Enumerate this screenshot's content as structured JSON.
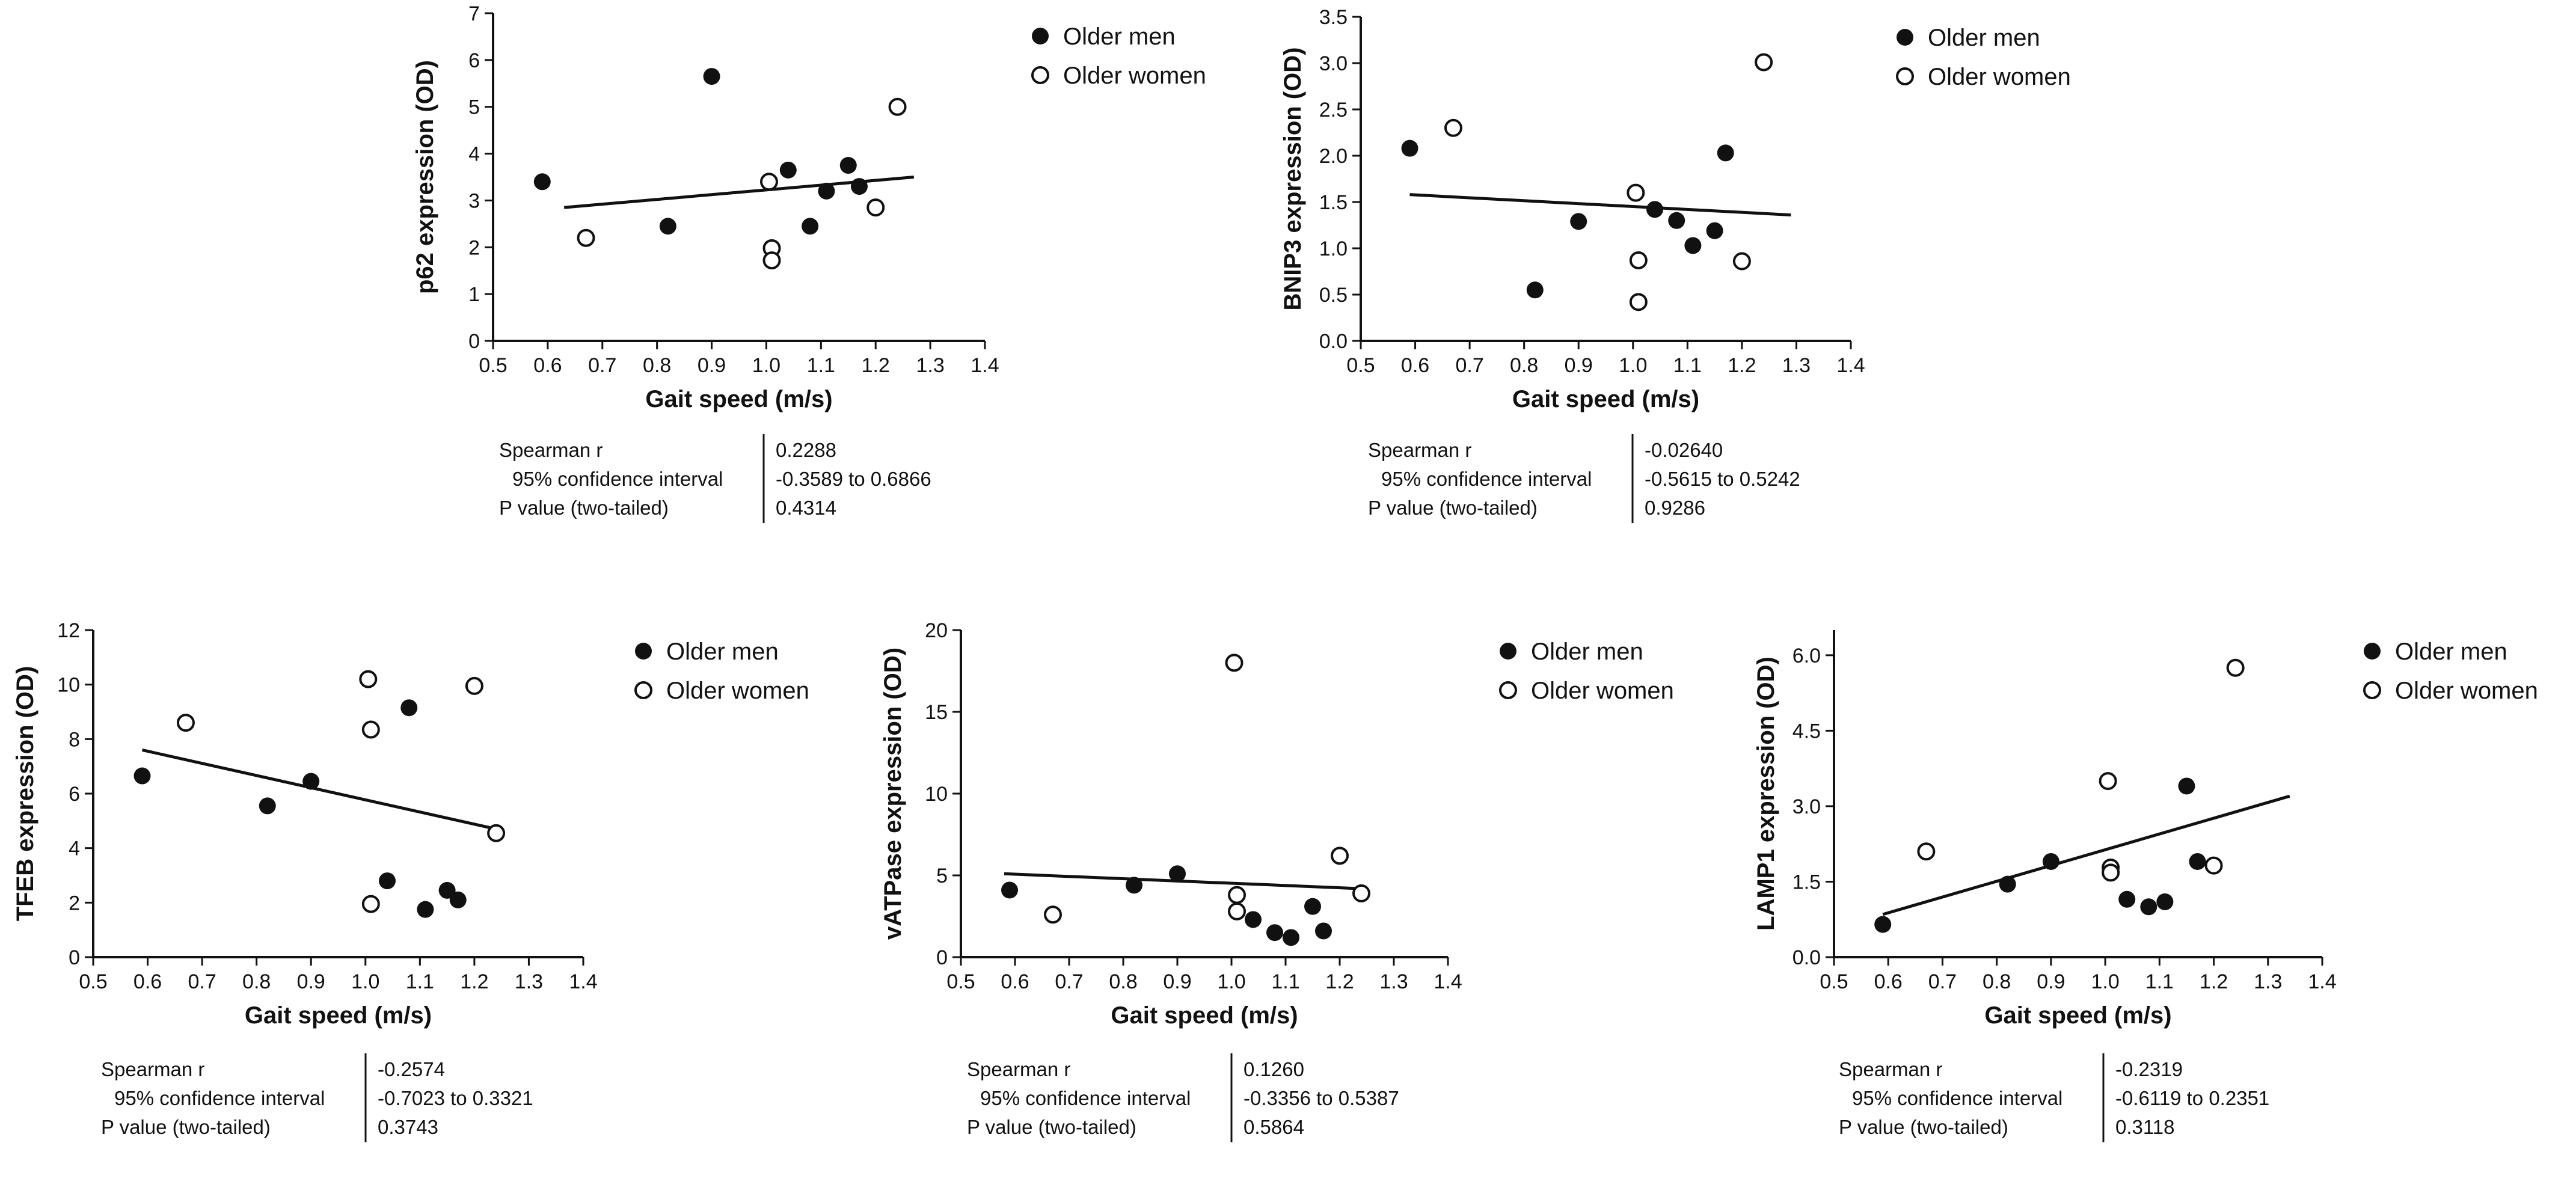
{
  "figure": {
    "legend": {
      "men_label": "Older men",
      "women_label": "Older women"
    },
    "stats_labels": [
      "Spearman r",
      "95% confidence interval",
      "P value (two-tailed)"
    ]
  },
  "chart_data": [
    {
      "type": "scatter",
      "title": "",
      "xlabel": "Gait speed (m/s)",
      "ylabel": "p62 expression (OD)",
      "xlim": [
        0.5,
        1.4
      ],
      "ylim": [
        0,
        7
      ],
      "xticks": [
        0.5,
        0.6,
        0.7,
        0.8,
        0.9,
        1.0,
        1.1,
        1.2,
        1.3,
        1.4
      ],
      "yticks": [
        0,
        1,
        2,
        3,
        4,
        5,
        6,
        7
      ],
      "grid": false,
      "legend_position": "right",
      "series": [
        {
          "name": "Older men",
          "marker": "filled-circle",
          "points": [
            [
              0.59,
              3.4
            ],
            [
              0.82,
              2.45
            ],
            [
              0.9,
              5.65
            ],
            [
              1.04,
              3.65
            ],
            [
              1.08,
              2.45
            ],
            [
              1.11,
              3.2
            ],
            [
              1.15,
              3.75
            ],
            [
              1.17,
              3.3
            ]
          ]
        },
        {
          "name": "Older women",
          "marker": "open-circle",
          "points": [
            [
              0.67,
              2.2
            ],
            [
              1.005,
              3.4
            ],
            [
              1.01,
              1.98
            ],
            [
              1.01,
              1.72
            ],
            [
              1.2,
              2.85
            ],
            [
              1.24,
              5.0
            ]
          ]
        }
      ],
      "regression_line": [
        [
          0.63,
          2.85
        ],
        [
          1.27,
          3.5
        ]
      ],
      "stats": {
        "spearman_r": "0.2288",
        "confidence_interval": "-0.3589 to 0.6866",
        "p_value": "0.4314"
      }
    },
    {
      "type": "scatter",
      "title": "",
      "xlabel": "Gait speed (m/s)",
      "ylabel": "BNIP3 expression (OD)",
      "xlim": [
        0.5,
        1.4
      ],
      "ylim": [
        0,
        3.5
      ],
      "xticks": [
        0.5,
        0.6,
        0.7,
        0.8,
        0.9,
        1.0,
        1.1,
        1.2,
        1.3,
        1.4
      ],
      "yticks": [
        0.0,
        0.5,
        1.0,
        1.5,
        2.0,
        2.5,
        3.0,
        3.5
      ],
      "grid": false,
      "legend_position": "right",
      "series": [
        {
          "name": "Older men",
          "marker": "filled-circle",
          "points": [
            [
              0.59,
              2.08
            ],
            [
              0.82,
              0.55
            ],
            [
              0.9,
              1.29
            ],
            [
              1.04,
              1.42
            ],
            [
              1.08,
              1.3
            ],
            [
              1.11,
              1.03
            ],
            [
              1.15,
              1.19
            ],
            [
              1.17,
              2.03
            ]
          ]
        },
        {
          "name": "Older women",
          "marker": "open-circle",
          "points": [
            [
              0.67,
              2.3
            ],
            [
              1.005,
              1.6
            ],
            [
              1.01,
              0.87
            ],
            [
              1.01,
              0.42
            ],
            [
              1.2,
              0.86
            ],
            [
              1.24,
              3.01
            ]
          ]
        }
      ],
      "regression_line": [
        [
          0.59,
          1.58
        ],
        [
          1.29,
          1.36
        ]
      ],
      "stats": {
        "spearman_r": "-0.02640",
        "confidence_interval": "-0.5615 to 0.5242",
        "p_value": "0.9286"
      }
    },
    {
      "type": "scatter",
      "title": "",
      "xlabel": "Gait speed (m/s)",
      "ylabel": "TFEB expression (OD)",
      "xlim": [
        0.5,
        1.4
      ],
      "ylim": [
        0,
        12
      ],
      "xticks": [
        0.5,
        0.6,
        0.7,
        0.8,
        0.9,
        1.0,
        1.1,
        1.2,
        1.3,
        1.4
      ],
      "yticks": [
        0,
        2,
        4,
        6,
        8,
        10,
        12
      ],
      "grid": false,
      "legend_position": "right",
      "series": [
        {
          "name": "Older men",
          "marker": "filled-circle",
          "points": [
            [
              0.59,
              6.65
            ],
            [
              0.82,
              5.55
            ],
            [
              0.9,
              6.45
            ],
            [
              1.04,
              2.8
            ],
            [
              1.08,
              9.15
            ],
            [
              1.11,
              1.75
            ],
            [
              1.15,
              2.45
            ],
            [
              1.17,
              2.1
            ]
          ]
        },
        {
          "name": "Older women",
          "marker": "open-circle",
          "points": [
            [
              0.67,
              8.6
            ],
            [
              1.005,
              10.2
            ],
            [
              1.01,
              8.35
            ],
            [
              1.01,
              1.95
            ],
            [
              1.2,
              9.95
            ],
            [
              1.24,
              4.55
            ]
          ]
        }
      ],
      "regression_line": [
        [
          0.59,
          7.6
        ],
        [
          1.24,
          4.7
        ]
      ],
      "stats": {
        "spearman_r": "-0.2574",
        "confidence_interval": "-0.7023 to 0.3321",
        "p_value": "0.3743"
      }
    },
    {
      "type": "scatter",
      "title": "",
      "xlabel": "Gait speed (m/s)",
      "ylabel": "vATPase expression (OD)",
      "xlim": [
        0.5,
        1.4
      ],
      "ylim": [
        0,
        20
      ],
      "xticks": [
        0.5,
        0.6,
        0.7,
        0.8,
        0.9,
        1.0,
        1.1,
        1.2,
        1.3,
        1.4
      ],
      "yticks": [
        0,
        5,
        10,
        15,
        20
      ],
      "grid": false,
      "legend_position": "right",
      "series": [
        {
          "name": "Older men",
          "marker": "filled-circle",
          "points": [
            [
              0.59,
              4.1
            ],
            [
              0.82,
              4.4
            ],
            [
              0.9,
              5.1
            ],
            [
              1.04,
              2.3
            ],
            [
              1.08,
              1.5
            ],
            [
              1.11,
              1.2
            ],
            [
              1.15,
              3.1
            ],
            [
              1.17,
              1.6
            ]
          ]
        },
        {
          "name": "Older women",
          "marker": "open-circle",
          "points": [
            [
              0.67,
              2.6
            ],
            [
              1.005,
              18.0
            ],
            [
              1.01,
              3.8
            ],
            [
              1.01,
              2.8
            ],
            [
              1.2,
              6.2
            ],
            [
              1.24,
              3.9
            ]
          ]
        }
      ],
      "regression_line": [
        [
          0.58,
          5.1
        ],
        [
          1.23,
          4.2
        ]
      ],
      "stats": {
        "spearman_r": "0.1260",
        "confidence_interval": "-0.3356 to 0.5387",
        "p_value": "0.5864"
      }
    },
    {
      "type": "scatter",
      "title": "",
      "xlabel": "Gait speed (m/s)",
      "ylabel": "LAMP1 expression (OD)",
      "xlim": [
        0.5,
        1.4
      ],
      "ylim": [
        0,
        6.5
      ],
      "xticks": [
        0.5,
        0.6,
        0.7,
        0.8,
        0.9,
        1.0,
        1.1,
        1.2,
        1.3,
        1.4
      ],
      "yticks": [
        0.0,
        1.5,
        3.0,
        4.5,
        6.0
      ],
      "grid": false,
      "legend_position": "right",
      "series": [
        {
          "name": "Older men",
          "marker": "filled-circle",
          "points": [
            [
              0.59,
              0.65
            ],
            [
              0.82,
              1.45
            ],
            [
              0.9,
              1.9
            ],
            [
              1.04,
              1.15
            ],
            [
              1.08,
              1.0
            ],
            [
              1.11,
              1.1
            ],
            [
              1.15,
              3.4
            ],
            [
              1.17,
              1.9
            ]
          ]
        },
        {
          "name": "Older women",
          "marker": "open-circle",
          "points": [
            [
              0.67,
              2.1
            ],
            [
              1.005,
              3.5
            ],
            [
              1.01,
              1.78
            ],
            [
              1.01,
              1.68
            ],
            [
              1.2,
              1.82
            ],
            [
              1.24,
              5.75
            ]
          ]
        }
      ],
      "regression_line": [
        [
          0.59,
          0.85
        ],
        [
          1.34,
          3.2
        ]
      ],
      "stats": {
        "spearman_r": "-0.2319",
        "confidence_interval": "-0.6119 to 0.2351",
        "p_value": "0.3118"
      }
    }
  ]
}
